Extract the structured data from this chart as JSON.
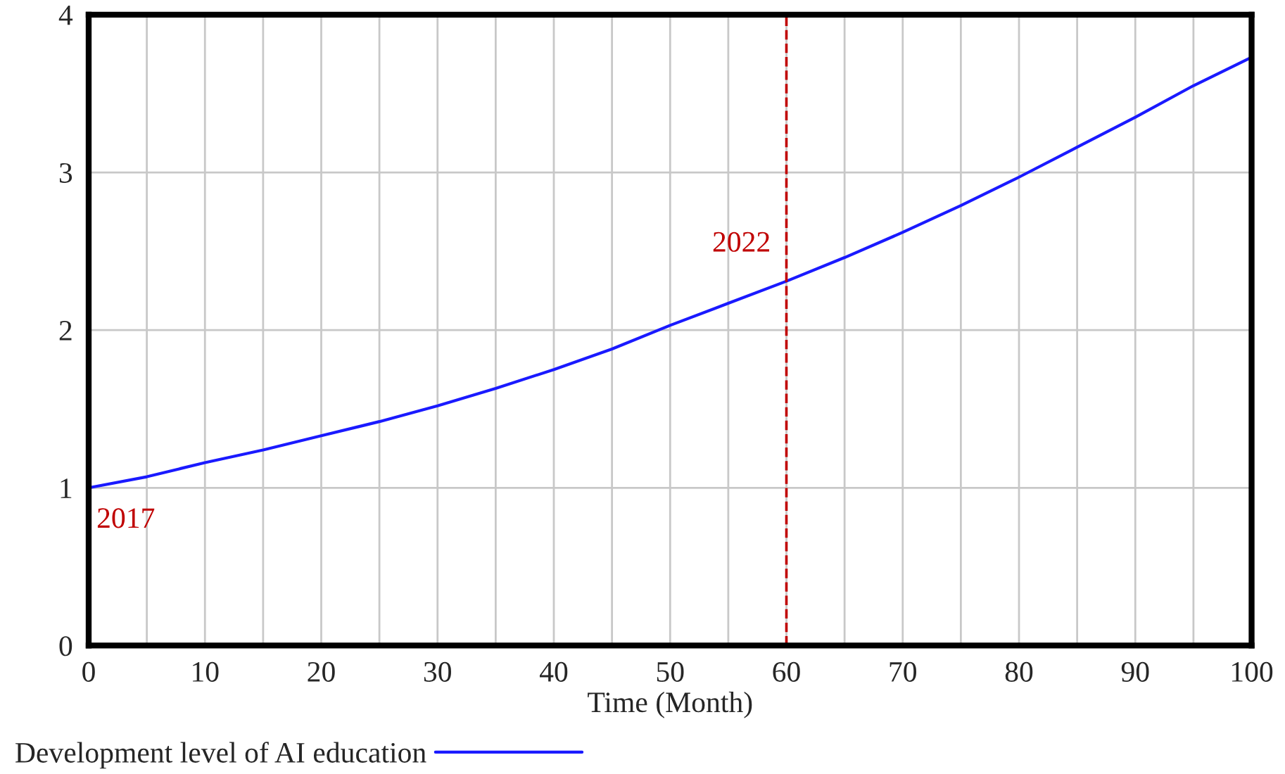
{
  "chart_data": {
    "type": "line",
    "xlabel": "Time (Month)",
    "x": [
      0,
      5,
      10,
      15,
      20,
      25,
      30,
      35,
      40,
      45,
      50,
      55,
      60,
      65,
      70,
      75,
      80,
      85,
      90,
      95,
      100
    ],
    "series": [
      {
        "name": "Development level of AI education",
        "color": "#1a1aff",
        "values": [
          1.0,
          1.07,
          1.16,
          1.24,
          1.33,
          1.42,
          1.52,
          1.63,
          1.75,
          1.88,
          2.03,
          2.17,
          2.31,
          2.46,
          2.62,
          2.79,
          2.97,
          3.16,
          3.35,
          3.55,
          3.73
        ]
      }
    ],
    "xlim": [
      0,
      100
    ],
    "ylim": [
      0,
      4
    ],
    "xticks": [
      0,
      {
        "value": 5,
        "label": null
      },
      10,
      {
        "value": 15,
        "label": null
      },
      20,
      {
        "value": 25,
        "label": null
      },
      30,
      {
        "value": 35,
        "label": null
      },
      40,
      {
        "value": 45,
        "label": null
      },
      50,
      {
        "value": 55,
        "label": null
      },
      60,
      {
        "value": 65,
        "label": null
      },
      70,
      {
        "value": 75,
        "label": null
      },
      80,
      {
        "value": 85,
        "label": null
      },
      90,
      {
        "value": 95,
        "label": null
      },
      100
    ],
    "yticks": [
      0,
      1,
      2,
      3,
      4
    ],
    "ref_lines": [
      {
        "axis": "x",
        "value": 60,
        "color": "#c00000",
        "line_style": "dashed"
      }
    ],
    "annotations": [
      {
        "text": "2017",
        "x": 0,
        "y": 1.0
      },
      {
        "text": "2022",
        "x": 60,
        "y": 2.31
      }
    ],
    "grid": true,
    "legend": "bottom left",
    "marker": "none",
    "line_style": "solid"
  }
}
